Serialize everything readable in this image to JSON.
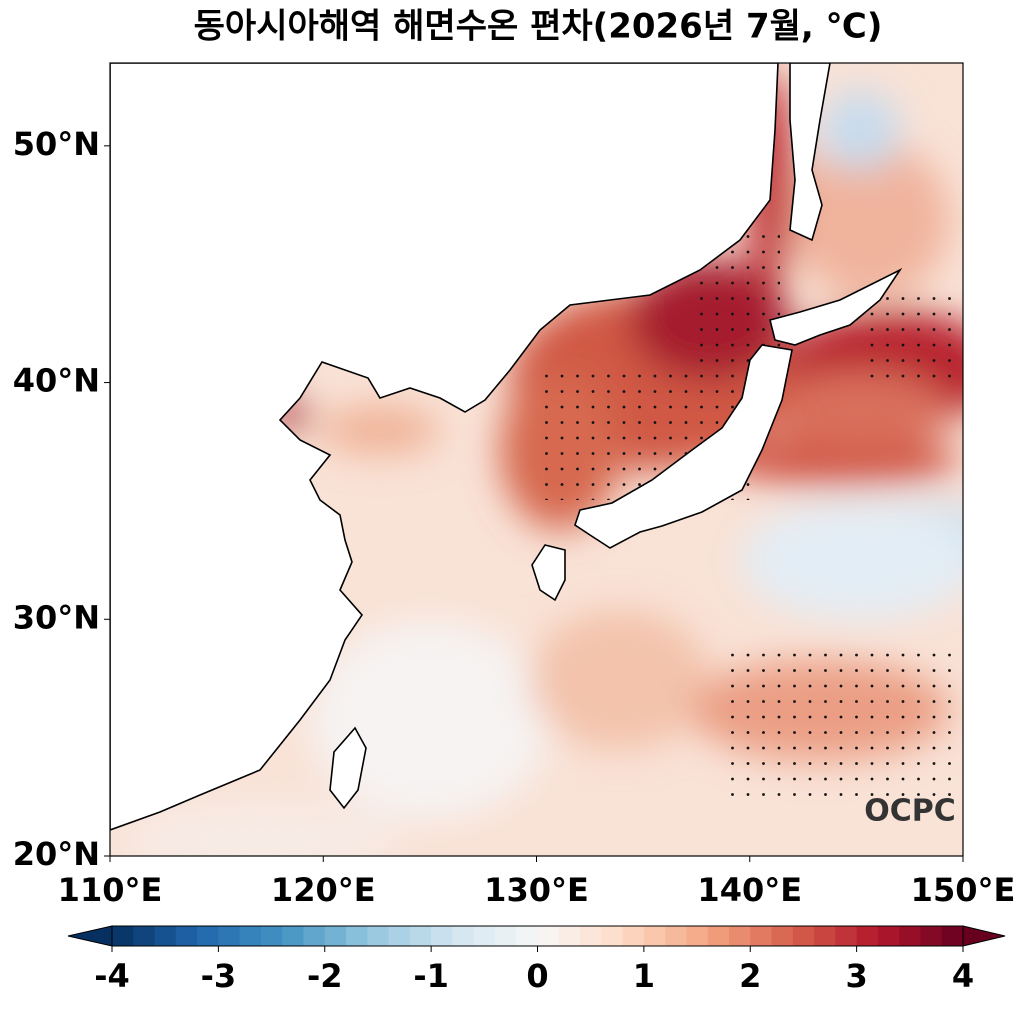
{
  "chart_data": {
    "type": "map",
    "title": "동아시아해역 해면수온 편차(2026년 7월, ℃)",
    "xlim": [
      110,
      150
    ],
    "ylim": [
      20,
      53.5
    ],
    "xticks": [
      {
        "value": 110,
        "label": "110°E"
      },
      {
        "value": 120,
        "label": "120°E"
      },
      {
        "value": 130,
        "label": "130°E"
      },
      {
        "value": 140,
        "label": "140°E"
      },
      {
        "value": 150,
        "label": "150°E"
      }
    ],
    "yticks": [
      {
        "value": 20,
        "label": "20°N"
      },
      {
        "value": 30,
        "label": "30°N"
      },
      {
        "value": 40,
        "label": "40°N"
      },
      {
        "value": 50,
        "label": "50°N"
      }
    ],
    "colorbar": {
      "colormap": "RdBu_r",
      "lim": [
        -4,
        4
      ],
      "ticks": [
        -4,
        -3,
        -2,
        -1,
        0,
        1,
        2,
        3,
        4
      ],
      "extend": "both"
    },
    "watermark": "OCPC"
  }
}
